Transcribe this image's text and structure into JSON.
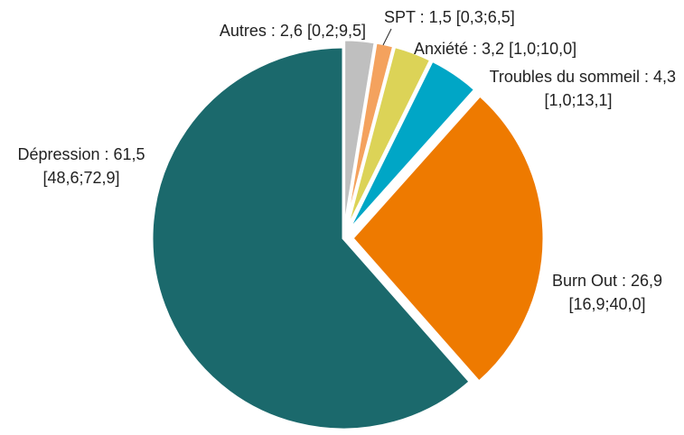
{
  "chart_data": {
    "type": "pie",
    "labels": [
      [
        "Autres : 2,6 [0,2;9,5]"
      ],
      [
        "SPT : 1,5 [0,3;6,5]"
      ],
      [
        "Anxiété : 3,2 [1,0;10,0]"
      ],
      [
        "Troubles du sommeil : 4,3",
        "[1,0;13,1]"
      ],
      [
        "Burn Out : 26,9",
        "[16,9;40,0]"
      ],
      [
        "Dépression : 61,5",
        "[48,6;72,9]"
      ]
    ],
    "values": [
      2.6,
      1.5,
      3.2,
      4.3,
      26.9,
      61.5
    ],
    "colors": [
      "#bfbfbf",
      "#f4a25e",
      "#dcd357",
      "#00a6c6",
      "#ee7a00",
      "#1b696c"
    ]
  }
}
